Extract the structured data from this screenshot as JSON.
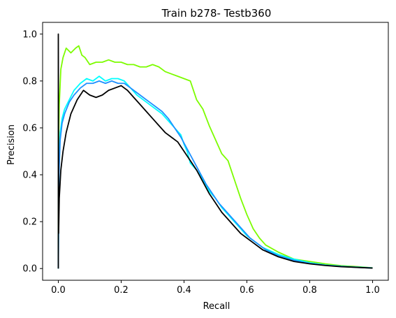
{
  "chart_data": {
    "type": "line",
    "title": "Train b278- Testb360",
    "xlabel": "Recall",
    "ylabel": "Precision",
    "xlim": [
      -0.05,
      1.05
    ],
    "ylim": [
      -0.05,
      1.05
    ],
    "xticks": [
      0.0,
      0.2,
      0.4,
      0.6,
      0.8,
      1.0
    ],
    "xtick_labels": [
      "0.0",
      "0.2",
      "0.4",
      "0.6",
      "0.8",
      "1.0"
    ],
    "yticks": [
      0.0,
      0.2,
      0.4,
      0.6,
      0.8,
      1.0
    ],
    "ytick_labels": [
      "0.0",
      "0.2",
      "0.4",
      "0.6",
      "0.8",
      "1.0"
    ],
    "grid": false,
    "legend": false,
    "series": [
      {
        "color": "#7cfc00",
        "points": [
          [
            0.0,
            0.0
          ],
          [
            0.001,
            0.55
          ],
          [
            0.003,
            0.7
          ],
          [
            0.008,
            0.85
          ],
          [
            0.015,
            0.9
          ],
          [
            0.025,
            0.94
          ],
          [
            0.04,
            0.92
          ],
          [
            0.055,
            0.94
          ],
          [
            0.065,
            0.95
          ],
          [
            0.075,
            0.91
          ],
          [
            0.085,
            0.9
          ],
          [
            0.1,
            0.87
          ],
          [
            0.12,
            0.88
          ],
          [
            0.14,
            0.88
          ],
          [
            0.16,
            0.89
          ],
          [
            0.18,
            0.88
          ],
          [
            0.2,
            0.88
          ],
          [
            0.22,
            0.87
          ],
          [
            0.24,
            0.87
          ],
          [
            0.26,
            0.86
          ],
          [
            0.28,
            0.86
          ],
          [
            0.3,
            0.87
          ],
          [
            0.32,
            0.86
          ],
          [
            0.34,
            0.84
          ],
          [
            0.36,
            0.83
          ],
          [
            0.38,
            0.82
          ],
          [
            0.4,
            0.81
          ],
          [
            0.42,
            0.8
          ],
          [
            0.43,
            0.76
          ],
          [
            0.44,
            0.72
          ],
          [
            0.46,
            0.68
          ],
          [
            0.48,
            0.61
          ],
          [
            0.5,
            0.55
          ],
          [
            0.52,
            0.49
          ],
          [
            0.54,
            0.46
          ],
          [
            0.56,
            0.38
          ],
          [
            0.58,
            0.3
          ],
          [
            0.6,
            0.23
          ],
          [
            0.62,
            0.17
          ],
          [
            0.64,
            0.13
          ],
          [
            0.66,
            0.1
          ],
          [
            0.7,
            0.07
          ],
          [
            0.75,
            0.04
          ],
          [
            0.8,
            0.03
          ],
          [
            0.85,
            0.02
          ],
          [
            0.9,
            0.012
          ],
          [
            0.95,
            0.008
          ],
          [
            1.0,
            0.003
          ]
        ]
      },
      {
        "color": "#00ffff",
        "points": [
          [
            0.0,
            0.0
          ],
          [
            0.002,
            0.45
          ],
          [
            0.006,
            0.58
          ],
          [
            0.012,
            0.64
          ],
          [
            0.02,
            0.68
          ],
          [
            0.035,
            0.72
          ],
          [
            0.05,
            0.76
          ],
          [
            0.07,
            0.79
          ],
          [
            0.09,
            0.81
          ],
          [
            0.11,
            0.8
          ],
          [
            0.13,
            0.82
          ],
          [
            0.15,
            0.8
          ],
          [
            0.17,
            0.81
          ],
          [
            0.19,
            0.81
          ],
          [
            0.21,
            0.8
          ],
          [
            0.23,
            0.77
          ],
          [
            0.25,
            0.74
          ],
          [
            0.27,
            0.72
          ],
          [
            0.29,
            0.7
          ],
          [
            0.31,
            0.68
          ],
          [
            0.33,
            0.66
          ],
          [
            0.35,
            0.63
          ],
          [
            0.37,
            0.6
          ],
          [
            0.39,
            0.57
          ],
          [
            0.4,
            0.53
          ],
          [
            0.41,
            0.5
          ],
          [
            0.42,
            0.45
          ],
          [
            0.44,
            0.42
          ],
          [
            0.46,
            0.38
          ],
          [
            0.48,
            0.33
          ],
          [
            0.5,
            0.3
          ],
          [
            0.52,
            0.26
          ],
          [
            0.54,
            0.23
          ],
          [
            0.56,
            0.2
          ],
          [
            0.58,
            0.17
          ],
          [
            0.6,
            0.14
          ],
          [
            0.62,
            0.12
          ],
          [
            0.65,
            0.09
          ],
          [
            0.7,
            0.06
          ],
          [
            0.75,
            0.04
          ],
          [
            0.8,
            0.025
          ],
          [
            0.85,
            0.015
          ],
          [
            0.9,
            0.01
          ],
          [
            0.95,
            0.006
          ],
          [
            1.0,
            0.003
          ]
        ]
      },
      {
        "color": "#1e90ff",
        "points": [
          [
            0.0,
            0.0
          ],
          [
            0.002,
            0.4
          ],
          [
            0.006,
            0.55
          ],
          [
            0.012,
            0.62
          ],
          [
            0.02,
            0.66
          ],
          [
            0.035,
            0.71
          ],
          [
            0.05,
            0.74
          ],
          [
            0.07,
            0.77
          ],
          [
            0.09,
            0.79
          ],
          [
            0.11,
            0.79
          ],
          [
            0.13,
            0.8
          ],
          [
            0.15,
            0.79
          ],
          [
            0.17,
            0.8
          ],
          [
            0.19,
            0.79
          ],
          [
            0.21,
            0.79
          ],
          [
            0.23,
            0.77
          ],
          [
            0.25,
            0.75
          ],
          [
            0.27,
            0.73
          ],
          [
            0.29,
            0.71
          ],
          [
            0.31,
            0.69
          ],
          [
            0.33,
            0.67
          ],
          [
            0.35,
            0.64
          ],
          [
            0.37,
            0.6
          ],
          [
            0.39,
            0.56
          ],
          [
            0.41,
            0.51
          ],
          [
            0.43,
            0.46
          ],
          [
            0.45,
            0.41
          ],
          [
            0.47,
            0.36
          ],
          [
            0.49,
            0.32
          ],
          [
            0.51,
            0.28
          ],
          [
            0.53,
            0.25
          ],
          [
            0.55,
            0.22
          ],
          [
            0.57,
            0.19
          ],
          [
            0.59,
            0.16
          ],
          [
            0.61,
            0.13
          ],
          [
            0.63,
            0.11
          ],
          [
            0.66,
            0.08
          ],
          [
            0.7,
            0.055
          ],
          [
            0.75,
            0.035
          ],
          [
            0.8,
            0.022
          ],
          [
            0.85,
            0.014
          ],
          [
            0.9,
            0.009
          ],
          [
            0.95,
            0.005
          ],
          [
            1.0,
            0.002
          ]
        ]
      },
      {
        "color": "#000000",
        "points": [
          [
            0.0,
            0.0
          ],
          [
            0.0,
            1.0
          ],
          [
            0.001,
            0.15
          ],
          [
            0.003,
            0.3
          ],
          [
            0.008,
            0.42
          ],
          [
            0.015,
            0.5
          ],
          [
            0.025,
            0.58
          ],
          [
            0.04,
            0.66
          ],
          [
            0.06,
            0.72
          ],
          [
            0.08,
            0.76
          ],
          [
            0.1,
            0.74
          ],
          [
            0.12,
            0.73
          ],
          [
            0.14,
            0.74
          ],
          [
            0.16,
            0.76
          ],
          [
            0.18,
            0.77
          ],
          [
            0.2,
            0.78
          ],
          [
            0.22,
            0.76
          ],
          [
            0.24,
            0.73
          ],
          [
            0.26,
            0.7
          ],
          [
            0.28,
            0.67
          ],
          [
            0.3,
            0.64
          ],
          [
            0.32,
            0.61
          ],
          [
            0.34,
            0.58
          ],
          [
            0.36,
            0.56
          ],
          [
            0.38,
            0.54
          ],
          [
            0.4,
            0.5
          ],
          [
            0.42,
            0.46
          ],
          [
            0.44,
            0.42
          ],
          [
            0.46,
            0.37
          ],
          [
            0.48,
            0.32
          ],
          [
            0.5,
            0.28
          ],
          [
            0.52,
            0.24
          ],
          [
            0.54,
            0.21
          ],
          [
            0.56,
            0.18
          ],
          [
            0.58,
            0.15
          ],
          [
            0.6,
            0.13
          ],
          [
            0.62,
            0.11
          ],
          [
            0.65,
            0.08
          ],
          [
            0.7,
            0.05
          ],
          [
            0.75,
            0.03
          ],
          [
            0.8,
            0.02
          ],
          [
            0.85,
            0.013
          ],
          [
            0.9,
            0.008
          ],
          [
            0.95,
            0.005
          ],
          [
            1.0,
            0.002
          ]
        ]
      }
    ]
  }
}
